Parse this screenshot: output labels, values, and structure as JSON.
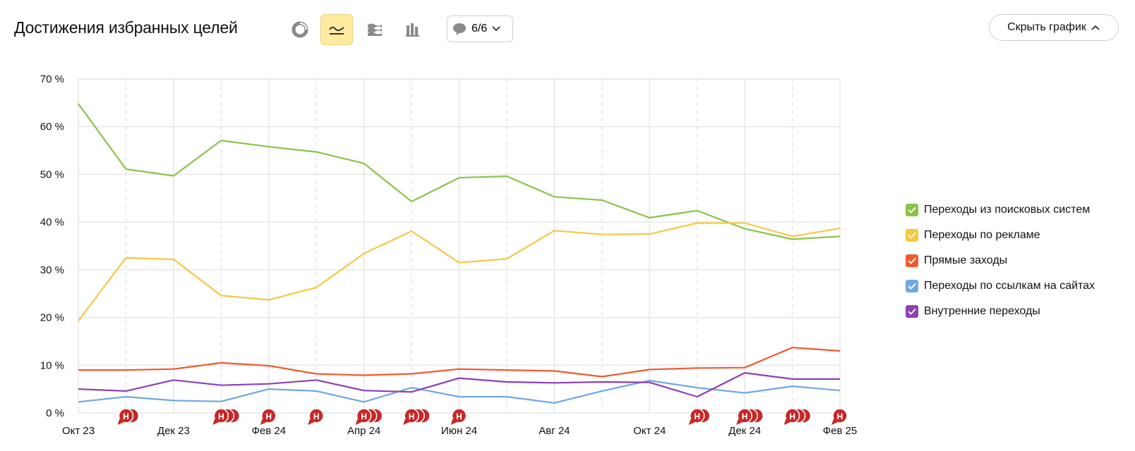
{
  "header": {
    "title": "Достижения избранных целей",
    "comments_count": "6/6",
    "hide_chart_label": "Скрыть график"
  },
  "toolbar": {
    "active": "line-chart",
    "icons": [
      "pie-chart-icon",
      "line-chart-icon",
      "stacked-area-icon",
      "stacked-bar-icon",
      "comment-icon"
    ]
  },
  "colors": {
    "green": "#8bc34a",
    "yellow": "#f5c842",
    "red": "#ef5a2f",
    "blue": "#6fa8e3",
    "purple": "#8e3fb3",
    "annotation": "#c62828",
    "grid": "#e6e6e6"
  },
  "legend": [
    {
      "label": "Переходы из поисковых систем",
      "color": "#8bc34a"
    },
    {
      "label": "Переходы по рекламе",
      "color": "#f5c842"
    },
    {
      "label": "Прямые заходы",
      "color": "#ef5a2f"
    },
    {
      "label": "Переходы по ссылкам на сайтах",
      "color": "#6fa8e3"
    },
    {
      "label": "Внутренние переходы",
      "color": "#8e3fb3"
    }
  ],
  "chart_data": {
    "type": "line",
    "title": "Достижения избранных целей",
    "x": [
      "2023-10",
      "2023-11",
      "2023-12",
      "2024-01",
      "2024-02",
      "2024-03",
      "2024-04",
      "2024-05",
      "2024-06",
      "2024-07",
      "2024-08",
      "2024-09",
      "2024-10",
      "2024-11",
      "2024-12",
      "2025-01",
      "2025-02"
    ],
    "x_tick_labels": [
      "Окт 23",
      "Дек 23",
      "Фев 24",
      "Апр 24",
      "Июн 24",
      "Авг 24",
      "Окт 24",
      "Дек 24",
      "Фев 25"
    ],
    "y_tick_labels": [
      "0 %",
      "10 %",
      "20 %",
      "30 %",
      "40 %",
      "50 %",
      "60 %",
      "70 %"
    ],
    "ylim": [
      0,
      70
    ],
    "grid": true,
    "legend_position": "right",
    "series": [
      {
        "name": "Переходы из поисковых систем",
        "color": "#8bc34a",
        "values": [
          64.8,
          51.1,
          49.7,
          57.1,
          55.8,
          54.7,
          52.3,
          44.3,
          49.3,
          49.6,
          45.3,
          44.6,
          40.9,
          42.4,
          38.6,
          36.4,
          37.0
        ]
      },
      {
        "name": "Переходы по рекламе",
        "color": "#f5c842",
        "values": [
          19.3,
          32.5,
          32.2,
          24.6,
          23.7,
          26.3,
          33.4,
          38.1,
          31.5,
          32.3,
          38.2,
          37.4,
          37.5,
          39.8,
          39.8,
          37.0,
          38.7
        ]
      },
      {
        "name": "Прямые заходы",
        "color": "#ef5a2f",
        "values": [
          9.0,
          9.0,
          9.2,
          10.5,
          9.9,
          8.2,
          7.9,
          8.2,
          9.2,
          9.0,
          8.8,
          7.6,
          9.1,
          9.4,
          9.5,
          13.7,
          13.0
        ]
      },
      {
        "name": "Переходы по ссылкам на сайтах",
        "color": "#6fa8e3",
        "values": [
          2.3,
          3.4,
          2.6,
          2.4,
          5.0,
          4.6,
          2.3,
          5.3,
          3.4,
          3.4,
          2.1,
          4.6,
          6.8,
          5.3,
          4.2,
          5.6,
          4.7
        ]
      },
      {
        "name": "Внутренние переходы",
        "color": "#8e3fb3",
        "values": [
          5.0,
          4.6,
          6.9,
          5.8,
          6.1,
          6.9,
          4.7,
          4.4,
          7.3,
          6.5,
          6.3,
          6.5,
          6.4,
          3.4,
          8.4,
          7.1,
          7.1
        ]
      }
    ],
    "annotations": [
      {
        "x": "2023-11",
        "count": 2,
        "label": "Н"
      },
      {
        "x": "2024-01",
        "count": 3,
        "label": "Н"
      },
      {
        "x": "2024-02",
        "count": 1,
        "label": "Н"
      },
      {
        "x": "2024-03",
        "count": 1,
        "label": "Н"
      },
      {
        "x": "2024-04",
        "count": 3,
        "label": "Н"
      },
      {
        "x": "2024-05",
        "count": 3,
        "label": "Н"
      },
      {
        "x": "2024-06",
        "count": 1,
        "label": "Н"
      },
      {
        "x": "2024-11",
        "count": 2,
        "label": "Н"
      },
      {
        "x": "2024-12",
        "count": 3,
        "label": "Н"
      },
      {
        "x": "2025-01",
        "count": 3,
        "label": "Н"
      },
      {
        "x": "2025-02",
        "count": 1,
        "label": "Н"
      }
    ]
  }
}
